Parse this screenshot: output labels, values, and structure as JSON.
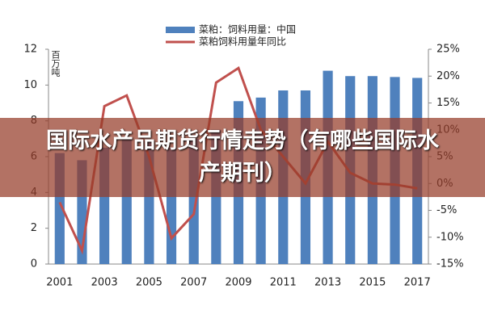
{
  "chart_data": {
    "type": "bar_line",
    "ylabel": "百万吨",
    "categories": [
      "2001",
      null,
      "2003",
      null,
      "2005",
      null,
      "2007",
      null,
      "2009",
      null,
      "2011",
      null,
      "2013",
      null,
      "2015",
      null,
      "2017"
    ],
    "series": [
      {
        "name": "菜粕：饲料用量：中国",
        "color": "#4f81bd",
        "type": "bar",
        "values": [
          6.2,
          5.8,
          6.5,
          7.0,
          6.8,
          6.5,
          7.0,
          7.5,
          9.1,
          9.3,
          9.7,
          9.7,
          10.8,
          10.5,
          10.5,
          10.45,
          10.4
        ]
      },
      {
        "name": "菜粕饲料用量年同比",
        "color": "#c0504d",
        "type": "line",
        "axis": "y2",
        "values": [
          -3.5,
          -12.5,
          14.4,
          16.4,
          5,
          -10.2,
          -5.7,
          18.8,
          21.5,
          10,
          5,
          0,
          7.8,
          2,
          0,
          -0.2,
          -0.9
        ]
      }
    ],
    "ylim": [
      0,
      12
    ],
    "yticks": [
      0,
      2,
      4,
      6,
      8,
      10,
      12
    ],
    "y2lim": [
      -15,
      25
    ],
    "y2ticks": [
      {
        "value": -15,
        "label": "-15%"
      },
      {
        "value": -10,
        "label": "-10%"
      },
      {
        "value": -5,
        "label": "-5%"
      },
      {
        "value": 0,
        "label": "0%"
      },
      {
        "value": 5,
        "label": "5%"
      },
      {
        "value": 10,
        "label": "10%"
      },
      {
        "value": 15,
        "label": "15%"
      },
      {
        "value": 20,
        "label": "20%"
      },
      {
        "value": 25,
        "label": "25%"
      }
    ]
  },
  "banner": {
    "text": "国际水产品期货行情走势（有哪些国际水产期刊）"
  }
}
